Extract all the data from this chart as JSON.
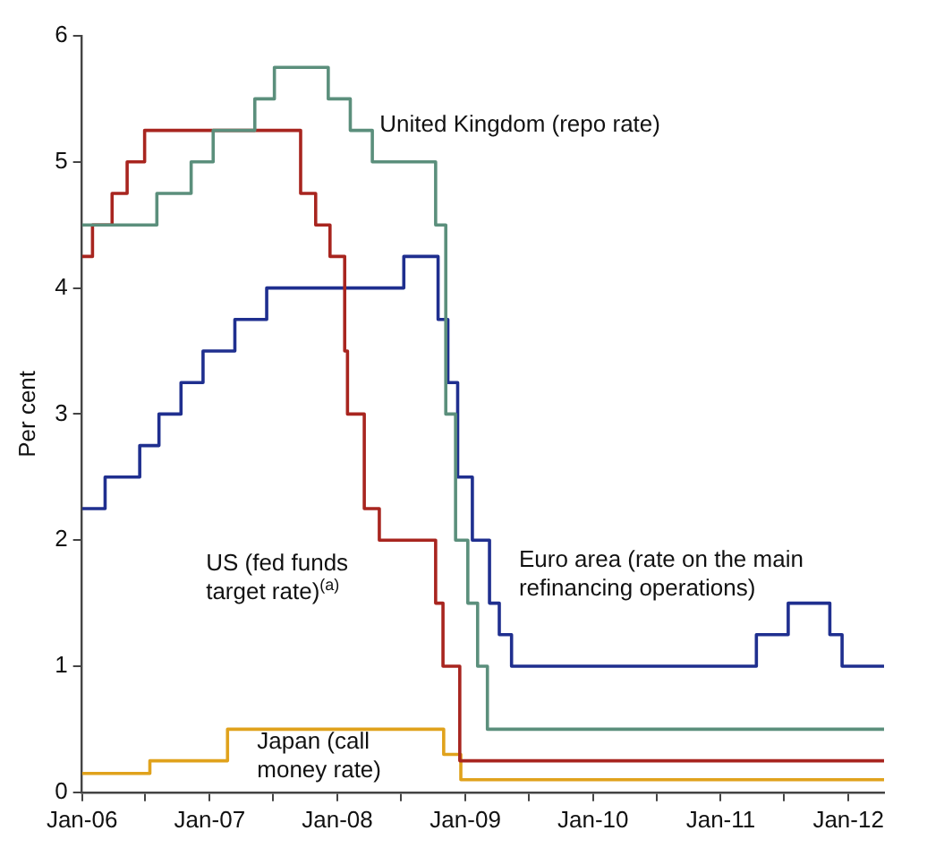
{
  "chart_data": {
    "type": "step",
    "ylabel": "Per cent",
    "xlim": [
      "2006-01-01",
      "2012-04-12"
    ],
    "xticks": [
      {
        "value": "2006-01",
        "label": "Jan-06"
      },
      {
        "value": "2006-07",
        "label": null
      },
      {
        "value": "2007-01",
        "label": "Jan-07"
      },
      {
        "value": "2007-07",
        "label": null
      },
      {
        "value": "2008-01",
        "label": "Jan-08"
      },
      {
        "value": "2008-07",
        "label": null
      },
      {
        "value": "2009-01",
        "label": "Jan-09"
      },
      {
        "value": "2009-07",
        "label": null
      },
      {
        "value": "2010-01",
        "label": "Jan-10"
      },
      {
        "value": "2010-07",
        "label": null
      },
      {
        "value": "2011-01",
        "label": "Jan-11"
      },
      {
        "value": "2011-07",
        "label": null
      },
      {
        "value": "2012-01",
        "label": "Jan-12"
      }
    ],
    "ylim": [
      0,
      6
    ],
    "yticks": [
      0,
      1,
      2,
      3,
      4,
      5,
      6
    ],
    "grid": false,
    "legend": false,
    "marker": "none",
    "line_style": "solid",
    "series": [
      {
        "name": "United Kingdom (repo rate)",
        "color": "#5b8f7c",
        "x": [
          "2006-01-01",
          "2006-08-03",
          "2006-11-09",
          "2007-01-11",
          "2007-05-10",
          "2007-07-05",
          "2007-12-06",
          "2008-02-07",
          "2008-04-10",
          "2008-10-08",
          "2008-11-06",
          "2008-12-04",
          "2009-01-08",
          "2009-02-05",
          "2009-03-05",
          "2012-04-12"
        ],
        "values": [
          4.5,
          4.75,
          5.0,
          5.25,
          5.5,
          5.75,
          5.5,
          5.25,
          5.0,
          4.5,
          3.0,
          2.0,
          1.5,
          1.0,
          0.5,
          0.5
        ]
      },
      {
        "name": "US (fed funds target rate)$^{(a)}$",
        "color": "#a8251f",
        "x": [
          "2006-01-01",
          "2006-01-31",
          "2006-03-28",
          "2006-05-10",
          "2006-06-29",
          "2007-09-18",
          "2007-10-31",
          "2007-12-11",
          "2008-01-22",
          "2008-01-30",
          "2008-03-18",
          "2008-04-30",
          "2008-10-08",
          "2008-10-29",
          "2008-12-16",
          "2012-04-12"
        ],
        "values": [
          4.25,
          4.5,
          4.75,
          5.0,
          5.25,
          4.75,
          4.5,
          4.25,
          3.5,
          3.0,
          2.25,
          2.0,
          1.5,
          1.0,
          0.25,
          0.25
        ]
      },
      {
        "name": "Euro area (rate on the main refinancing operations)",
        "color": "#1f2f8f",
        "x": [
          "2006-01-01",
          "2006-03-08",
          "2006-06-15",
          "2006-08-09",
          "2006-10-11",
          "2006-12-13",
          "2007-03-14",
          "2007-06-13",
          "2008-07-09",
          "2008-10-15",
          "2008-11-12",
          "2008-12-10",
          "2009-01-21",
          "2009-03-11",
          "2009-04-08",
          "2009-05-13",
          "2011-04-13",
          "2011-07-13",
          "2011-11-09",
          "2011-12-14",
          "2012-04-12"
        ],
        "values": [
          2.25,
          2.5,
          2.75,
          3.0,
          3.25,
          3.5,
          3.75,
          4.0,
          4.25,
          3.75,
          3.25,
          2.5,
          2.0,
          1.5,
          1.25,
          1.0,
          1.25,
          1.5,
          1.25,
          1.0,
          1.0
        ]
      },
      {
        "name": "Japan (call money rate)",
        "color": "#e0a21c",
        "x": [
          "2006-01-01",
          "2006-07-14",
          "2007-02-21",
          "2008-10-31",
          "2008-12-19",
          "2012-04-12"
        ],
        "values": [
          0.15,
          0.25,
          0.5,
          0.3,
          0.1,
          0.1
        ]
      }
    ]
  }
}
